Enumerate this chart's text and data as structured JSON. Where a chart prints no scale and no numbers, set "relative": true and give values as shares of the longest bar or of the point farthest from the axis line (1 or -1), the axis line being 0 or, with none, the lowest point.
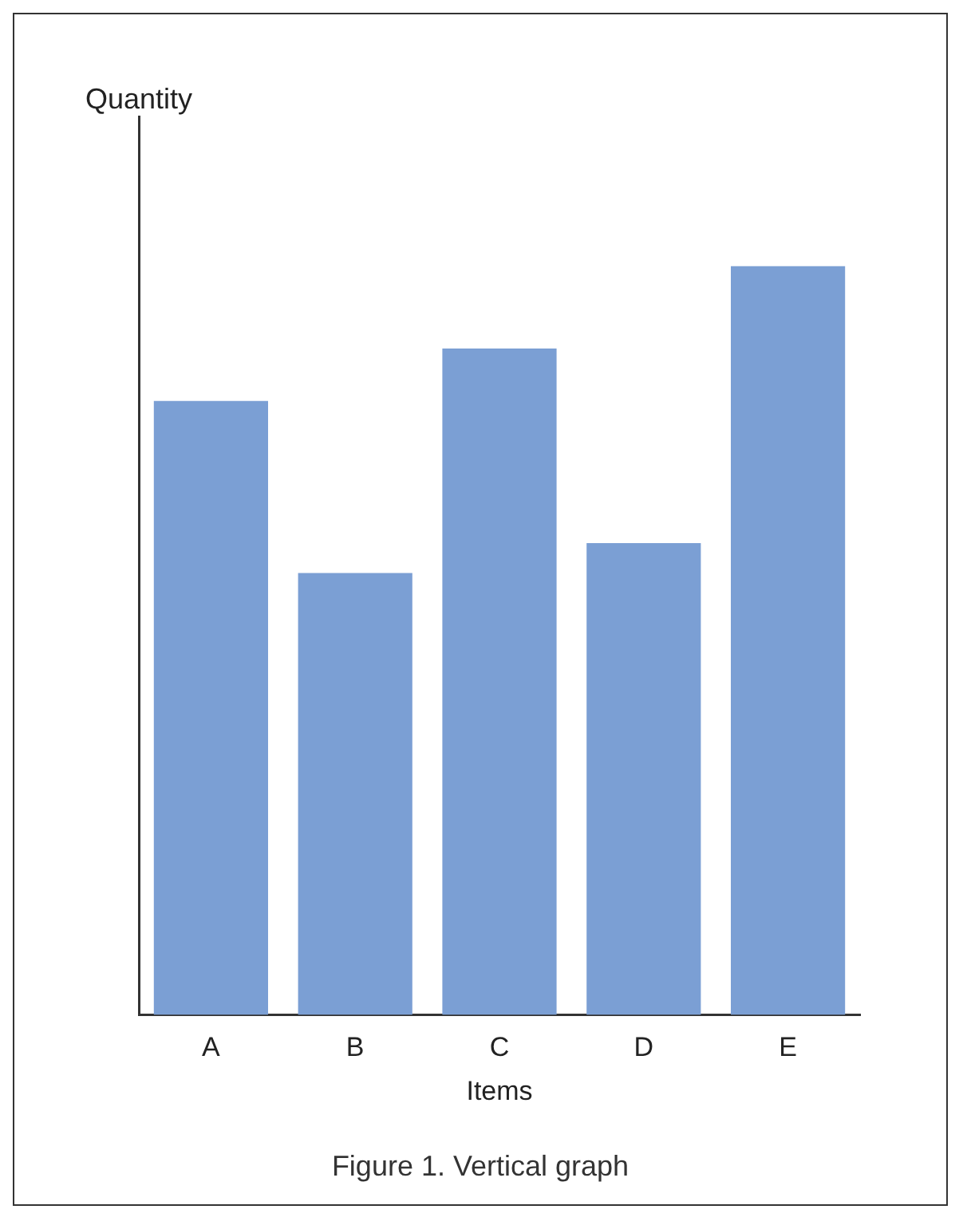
{
  "chart_data": {
    "type": "bar",
    "relative": true,
    "xlabel": "Items",
    "categories": [
      "A",
      "B",
      "C",
      "D",
      "E"
    ],
    "values": [
      0.82,
      0.59,
      0.89,
      0.63,
      1
    ],
    "color": "#7b9fd4",
    "annotations": [
      "Quantity",
      "Figure 1. Vertical graph"
    ]
  }
}
